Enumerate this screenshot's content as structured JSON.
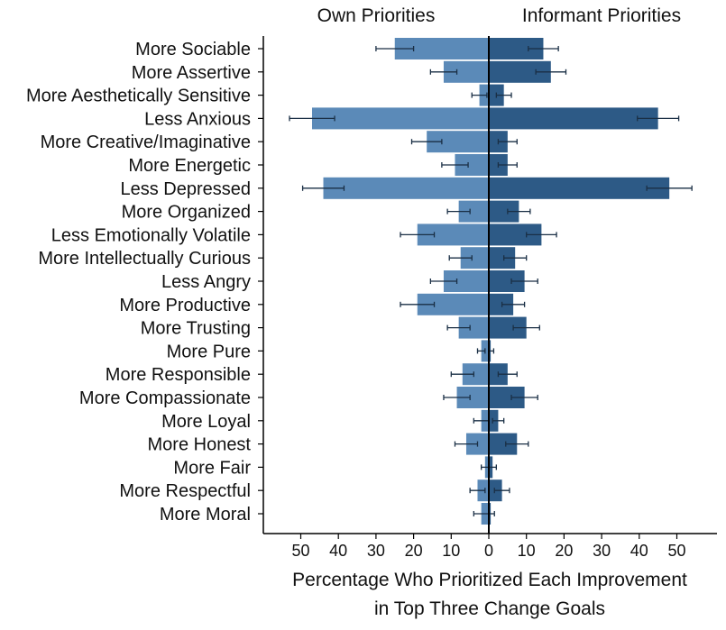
{
  "chart_data": {
    "type": "bar",
    "orientation": "horizontal-back-to-back",
    "headers": {
      "left": "Own Priorities",
      "right": "Informant Priorities"
    },
    "xlabel_lines": [
      "Percentage Who Prioritized Each Improvement",
      "in Top Three Change Goals"
    ],
    "x_ticks": [
      50,
      40,
      30,
      20,
      10,
      0,
      10,
      20,
      30,
      40,
      50
    ],
    "xlim": [
      -60,
      60
    ],
    "colors": {
      "own": "#5b8ab8",
      "informant": "#2d5a86",
      "error_bar": "#1a2f45",
      "center_line": "#000000"
    },
    "categories": [
      "More Sociable",
      "More Assertive",
      "More Aesthetically Sensitive",
      "Less Anxious",
      "More Creative/Imaginative",
      "More Energetic",
      "Less Depressed",
      "More Organized",
      "Less Emotionally Volatile",
      "More Intellectually Curious",
      "Less Angry",
      "More Productive",
      "More Trusting",
      "More Pure",
      "More Responsible",
      "More Compassionate",
      "More Loyal",
      "More Honest",
      "More Fair",
      "More Respectful",
      "More Moral"
    ],
    "series": [
      {
        "name": "Own Priorities",
        "values": [
          25,
          12,
          2.5,
          47,
          16.5,
          9,
          44,
          8,
          19,
          7.5,
          12,
          19,
          8,
          2,
          7,
          8.5,
          2,
          6,
          1,
          3,
          2
        ],
        "errors": [
          5,
          3.5,
          2,
          6,
          4,
          3.5,
          5.5,
          3,
          4.5,
          3,
          3.5,
          4.5,
          3,
          1,
          3,
          3.5,
          2,
          3,
          1,
          2,
          2
        ]
      },
      {
        "name": "Informant Priorities",
        "values": [
          14.5,
          16.5,
          4,
          45,
          5,
          5,
          48,
          8,
          14,
          7,
          9.5,
          6.5,
          10,
          0.5,
          5,
          9.5,
          2.5,
          7.5,
          1,
          3.5,
          0.5
        ],
        "errors": [
          4,
          4,
          2,
          5.5,
          2.5,
          2.5,
          6,
          3,
          4,
          3,
          3.5,
          3,
          3.5,
          0.8,
          2.5,
          3.5,
          1.5,
          3,
          1,
          2,
          1
        ]
      }
    ]
  }
}
